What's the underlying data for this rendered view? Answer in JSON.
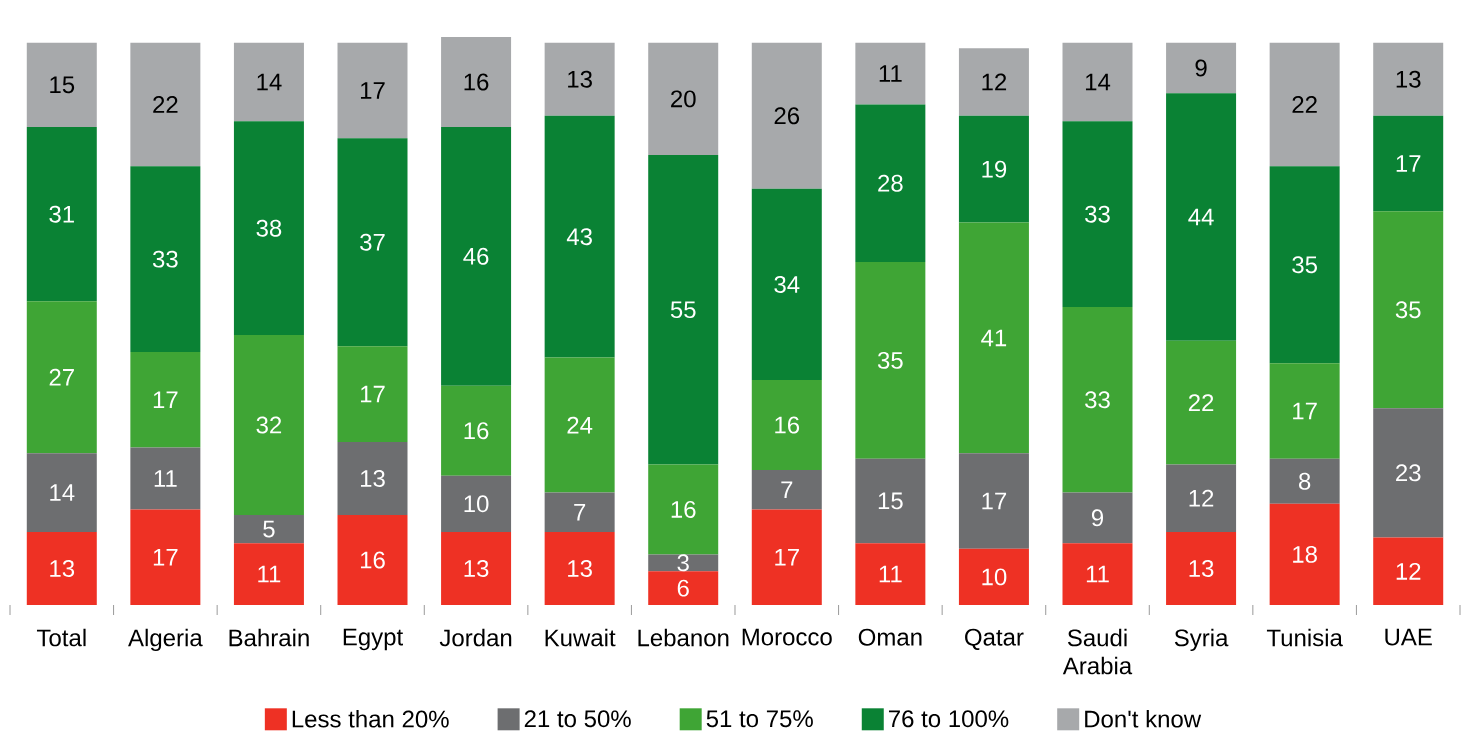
{
  "chart_data": {
    "type": "bar",
    "stacked": true,
    "data_labels": true,
    "legend": "bottom",
    "categories": [
      "Total",
      "Algeria",
      "Bahrain",
      "Egypt",
      "Jordan",
      "Kuwait",
      "Lebanon",
      "Morocco",
      "Oman",
      "Qatar",
      "Saudi Arabia",
      "Syria",
      "Tunisia",
      "UAE"
    ],
    "series": [
      {
        "name": "Less than 20%",
        "color": "#ee3124",
        "values": [
          13,
          17,
          11,
          16,
          13,
          13,
          6,
          17,
          11,
          10,
          11,
          13,
          18,
          12
        ]
      },
      {
        "name": "21 to 50%",
        "color": "#6d6e70",
        "values": [
          14,
          11,
          5,
          13,
          10,
          7,
          3,
          7,
          15,
          17,
          9,
          12,
          8,
          23
        ]
      },
      {
        "name": "51 to 75%",
        "color": "#3fa535",
        "values": [
          27,
          17,
          32,
          17,
          16,
          24,
          16,
          16,
          35,
          41,
          33,
          22,
          17,
          35
        ]
      },
      {
        "name": "76 to 100%",
        "color": "#0a8234",
        "values": [
          31,
          33,
          38,
          37,
          46,
          43,
          55,
          34,
          28,
          19,
          33,
          44,
          35,
          17
        ]
      },
      {
        "name": "Don't know",
        "color": "#a7a9ab",
        "values": [
          15,
          22,
          14,
          17,
          16,
          13,
          20,
          26,
          11,
          12,
          14,
          9,
          22,
          13
        ]
      }
    ]
  }
}
